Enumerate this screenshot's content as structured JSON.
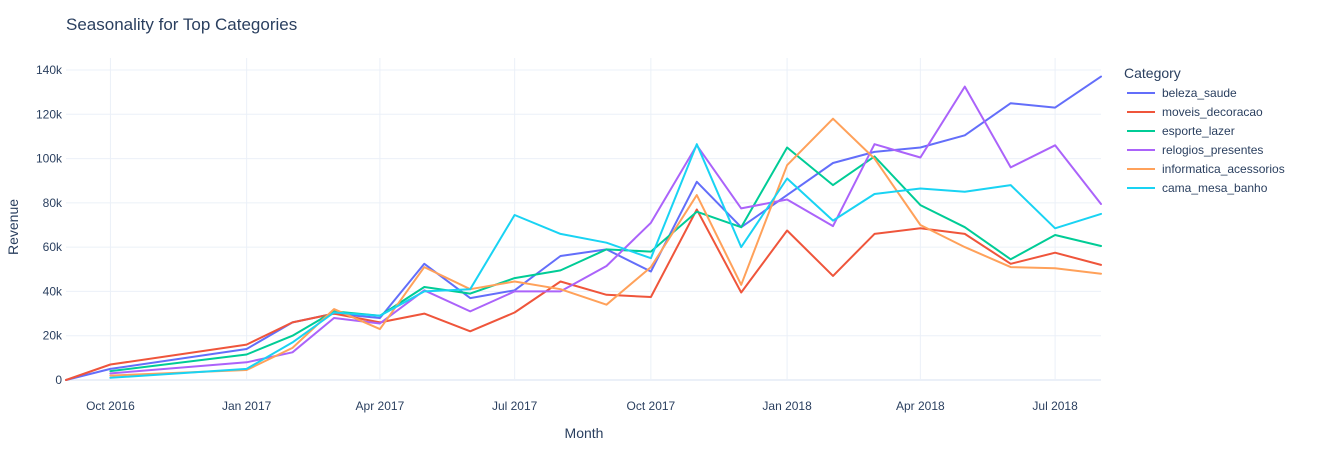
{
  "chart_data": {
    "type": "line",
    "title": "Seasonality for Top Categories",
    "xlabel": "Month",
    "ylabel": "Revenue",
    "legend_title": "Category",
    "legend_position": "top-right",
    "grid": true,
    "ylim": [
      0,
      140000
    ],
    "x": [
      "2016-09",
      "2016-10",
      "2016-12",
      "2017-01",
      "2017-02",
      "2017-03",
      "2017-04",
      "2017-05",
      "2017-06",
      "2017-07",
      "2017-08",
      "2017-09",
      "2017-10",
      "2017-11",
      "2017-12",
      "2018-01",
      "2018-02",
      "2018-03",
      "2018-04",
      "2018-05",
      "2018-06",
      "2018-07",
      "2018-08"
    ],
    "x_ticks": [
      "2016-10",
      "2017-01",
      "2017-04",
      "2017-07",
      "2017-10",
      "2018-01",
      "2018-04",
      "2018-07"
    ],
    "x_tick_labels": [
      "Oct 2016",
      "Jan 2017",
      "Apr 2017",
      "Jul 2017",
      "Oct 2017",
      "Jan 2018",
      "Apr 2018",
      "Jul 2018"
    ],
    "y_ticks": [
      0,
      20000,
      40000,
      60000,
      80000,
      100000,
      120000,
      140000
    ],
    "y_tick_labels": [
      "0",
      "20k",
      "40k",
      "60k",
      "80k",
      "100k",
      "120k",
      "140k"
    ],
    "series": [
      {
        "name": "beleza_saude",
        "color": "#636efa",
        "values": [
          0,
          5000,
          null,
          14000,
          26000,
          30000,
          28000,
          52500,
          37000,
          40500,
          56000,
          59000,
          49000,
          89500,
          69000,
          83500,
          98000,
          103000,
          105000,
          110500,
          125000,
          123000,
          137000
        ]
      },
      {
        "name": "moveis_decoracao",
        "color": "#ef553b",
        "values": [
          0,
          7000,
          null,
          16000,
          26000,
          30000,
          26000,
          30000,
          22000,
          30500,
          44500,
          38500,
          37500,
          77000,
          39500,
          67500,
          47000,
          66000,
          68500,
          66000,
          52500,
          57500,
          52000
        ]
      },
      {
        "name": "esporte_lazer",
        "color": "#00cc96",
        "values": [
          null,
          4000,
          null,
          11500,
          20000,
          31000,
          29000,
          42000,
          39000,
          46000,
          49500,
          59000,
          58000,
          76000,
          69000,
          105000,
          88000,
          101000,
          79000,
          69000,
          54500,
          65500,
          60500
        ]
      },
      {
        "name": "relogios_presentes",
        "color": "#ab63fa",
        "values": [
          null,
          3000,
          null,
          8000,
          12500,
          28000,
          25500,
          40500,
          31000,
          40000,
          40000,
          51500,
          71000,
          106000,
          77500,
          81500,
          69500,
          106500,
          100500,
          132500,
          96000,
          106000,
          79500
        ]
      },
      {
        "name": "informatica_acessorios",
        "color": "#ffa15a",
        "values": [
          null,
          2000,
          null,
          4500,
          14500,
          32000,
          23000,
          51000,
          41000,
          44500,
          41000,
          34000,
          51000,
          83500,
          43000,
          97000,
          118000,
          100000,
          70000,
          60000,
          51000,
          50500,
          48000
        ]
      },
      {
        "name": "cama_mesa_banho",
        "color": "#19d3f3",
        "values": [
          null,
          1000,
          null,
          5000,
          17000,
          30500,
          29000,
          40000,
          41000,
          74500,
          66000,
          62000,
          55000,
          106500,
          60000,
          91000,
          72000,
          84000,
          86500,
          85000,
          88000,
          68500,
          75000
        ]
      }
    ]
  }
}
